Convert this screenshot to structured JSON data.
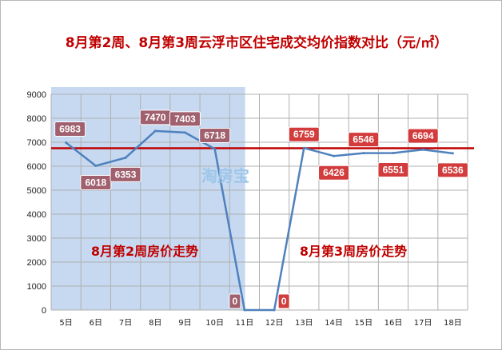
{
  "chart_data": {
    "type": "line",
    "title": "8月第2周、8月第3周云浮市区住宅成交均价指数对比（元/㎡）",
    "categories": [
      "5日",
      "6日",
      "7日",
      "8日",
      "9日",
      "10日",
      "11日",
      "12日",
      "13日",
      "14日",
      "15日",
      "16日",
      "17日",
      "18日"
    ],
    "series": [
      {
        "values": [
          6983,
          6018,
          6353,
          7470,
          7403,
          6718,
          0,
          0,
          6759,
          6426,
          6546,
          6551,
          6694,
          6536
        ]
      }
    ],
    "data_labels": [
      {
        "index": 0,
        "text": "6983",
        "pos": "above"
      },
      {
        "index": 1,
        "text": "6018",
        "pos": "below"
      },
      {
        "index": 2,
        "text": "6353",
        "pos": "below"
      },
      {
        "index": 3,
        "text": "7470",
        "pos": "above"
      },
      {
        "index": 4,
        "text": "7403",
        "pos": "above"
      },
      {
        "index": 5,
        "text": "6718",
        "pos": "above"
      },
      {
        "index": 6,
        "text": "0",
        "pos": "left"
      },
      {
        "index": 7,
        "text": "0",
        "pos": "right"
      },
      {
        "index": 8,
        "text": "6759",
        "pos": "above"
      },
      {
        "index": 9,
        "text": "6426",
        "pos": "below"
      },
      {
        "index": 10,
        "text": "6546",
        "pos": "above"
      },
      {
        "index": 11,
        "text": "6551",
        "pos": "below"
      },
      {
        "index": 12,
        "text": "6694",
        "pos": "above"
      },
      {
        "index": 13,
        "text": "6536",
        "pos": "below"
      }
    ],
    "y_ticks": [
      "0",
      "1000",
      "2000",
      "3000",
      "4000",
      "5000",
      "6000",
      "7000",
      "8000",
      "9000"
    ],
    "ylim": [
      0,
      9000
    ],
    "reference_line": 6750,
    "week_labels": [
      "8月第2周房价走势",
      "8月第3周房价走势"
    ],
    "watermark": "淘房宝",
    "grid": true,
    "colors": {
      "title": "#c00000",
      "line": "#4f81bd",
      "reference": "#c00000",
      "shade": "#c6d9f1",
      "label_week2": "#a0606e",
      "label_week3": "#d23c3c",
      "grid": "#b0b0b0"
    }
  }
}
